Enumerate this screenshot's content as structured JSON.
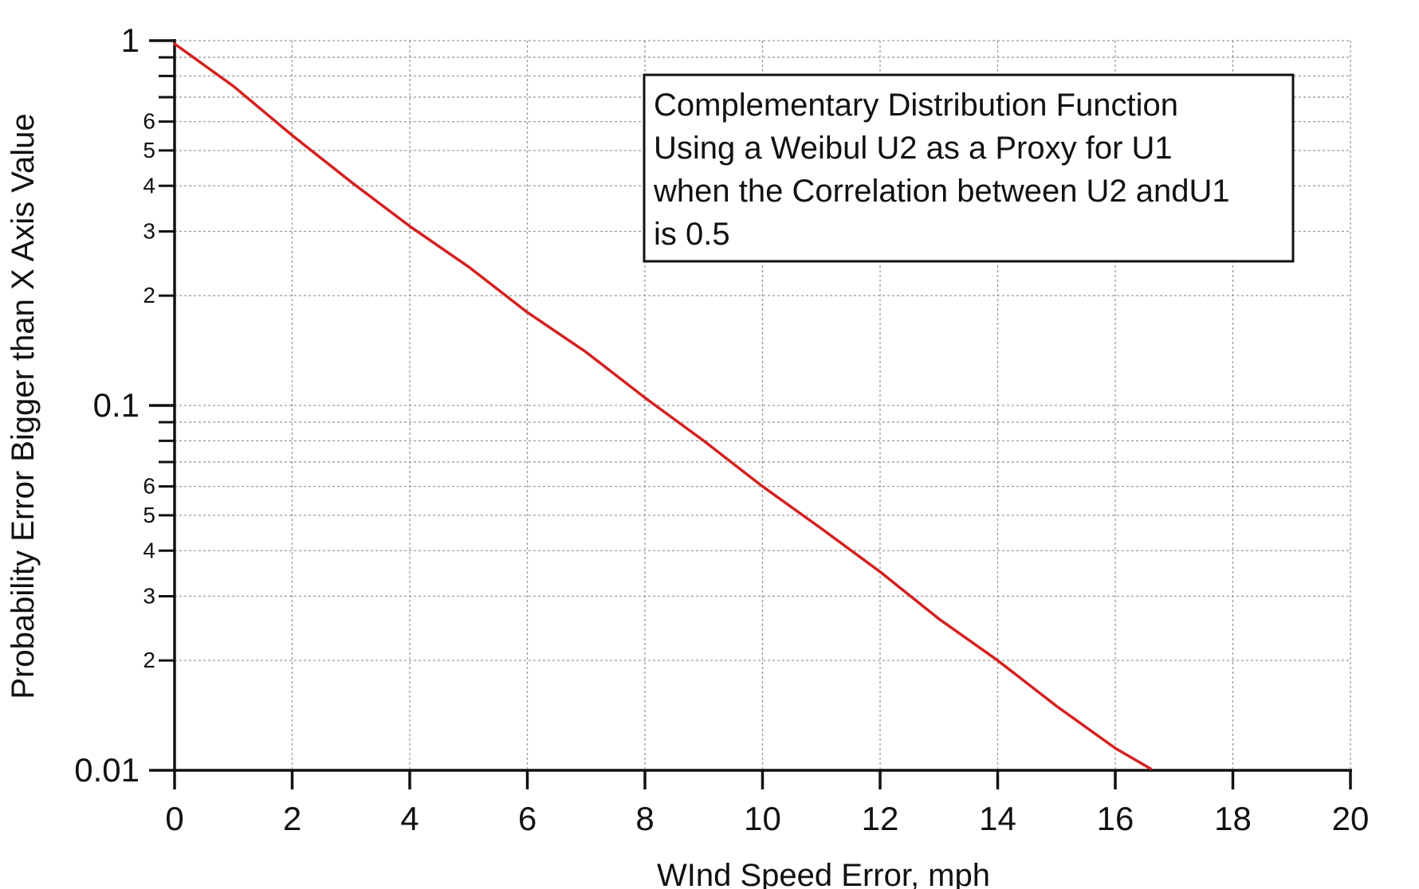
{
  "chart_data": {
    "type": "line",
    "title": "",
    "xlabel": "WInd Speed Error, mph",
    "ylabel": "Probability Error Bigger than X Axis Value",
    "xlim": [
      0,
      20
    ],
    "ylim": [
      0.01,
      1
    ],
    "yscale": "log",
    "grid": true,
    "x_ticks": [
      {
        "value": 0,
        "label": "0"
      },
      {
        "value": 2,
        "label": "2"
      },
      {
        "value": 4,
        "label": "4"
      },
      {
        "value": 6,
        "label": "6"
      },
      {
        "value": 8,
        "label": "8"
      },
      {
        "value": 10,
        "label": "10"
      },
      {
        "value": 12,
        "label": "12"
      },
      {
        "value": 14,
        "label": "14"
      },
      {
        "value": 16,
        "label": "16"
      },
      {
        "value": 18,
        "label": "18"
      },
      {
        "value": 20,
        "label": "20"
      }
    ],
    "y_major_ticks": [
      {
        "value": 1,
        "label": "1"
      },
      {
        "value": 0.1,
        "label": "0.1"
      },
      {
        "value": 0.01,
        "label": "0.01"
      }
    ],
    "y_minor_ticks": [
      {
        "value": 0.9,
        "label": ""
      },
      {
        "value": 0.8,
        "label": ""
      },
      {
        "value": 0.7,
        "label": ""
      },
      {
        "value": 0.6,
        "label": "6"
      },
      {
        "value": 0.5,
        "label": "5"
      },
      {
        "value": 0.4,
        "label": "4"
      },
      {
        "value": 0.3,
        "label": "3"
      },
      {
        "value": 0.2,
        "label": "2"
      },
      {
        "value": 0.09,
        "label": ""
      },
      {
        "value": 0.08,
        "label": ""
      },
      {
        "value": 0.07,
        "label": ""
      },
      {
        "value": 0.06,
        "label": "6"
      },
      {
        "value": 0.05,
        "label": "5"
      },
      {
        "value": 0.04,
        "label": "4"
      },
      {
        "value": 0.03,
        "label": "3"
      },
      {
        "value": 0.02,
        "label": "2"
      }
    ],
    "annotation": {
      "lines": [
        "Complementary Distribution Function",
        "Using a Weibul U2 as a Proxy for U1",
        "when the Correlation between U2 andU1",
        "is 0.5"
      ]
    },
    "series": [
      {
        "color": "#d42020",
        "x": [
          0,
          1,
          2,
          3,
          4,
          5,
          6,
          7,
          8,
          9,
          10,
          11,
          12,
          13,
          14,
          15,
          16,
          16.6
        ],
        "y": [
          0.98,
          0.75,
          0.55,
          0.41,
          0.31,
          0.24,
          0.18,
          0.14,
          0.105,
          0.08,
          0.06,
          0.046,
          0.035,
          0.026,
          0.02,
          0.015,
          0.0115,
          0.0101
        ]
      }
    ]
  }
}
